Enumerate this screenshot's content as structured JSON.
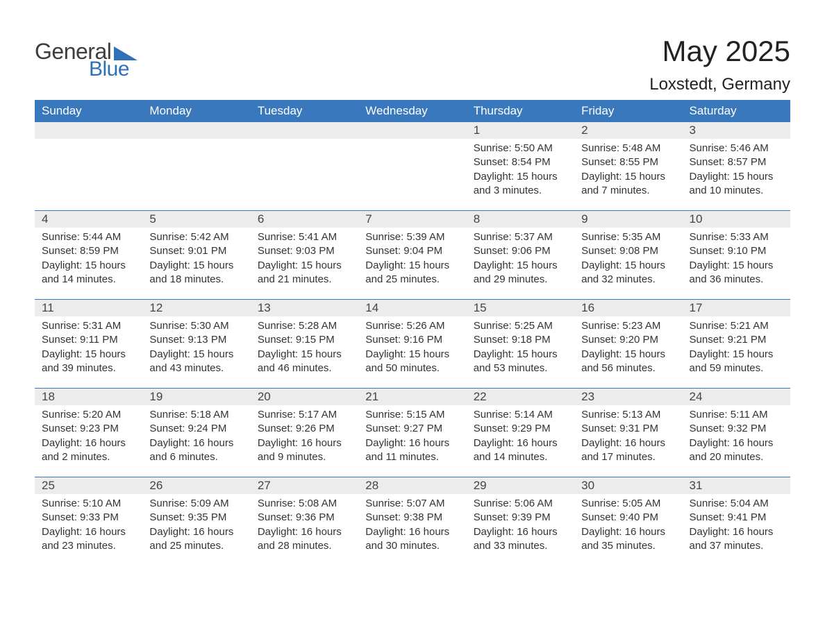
{
  "brand": {
    "general": "General",
    "blue": "Blue"
  },
  "title": "May 2025",
  "subtitle": "Loxstedt, Germany",
  "colors": {
    "header_bg": "#3a78bd",
    "header_fg": "#ffffff",
    "daynum_bg": "#ececec",
    "rule": "#3a78bd",
    "body_text": "#333333",
    "logo_blue": "#2f71b8",
    "logo_gray": "#3d3d3d",
    "page_bg": "#ffffff"
  },
  "typography": {
    "title_fontsize": 42,
    "subtitle_fontsize": 24,
    "header_fontsize": 17,
    "daynum_fontsize": 17,
    "detail_fontsize": 15
  },
  "calendar": {
    "type": "table",
    "columns": [
      "Sunday",
      "Monday",
      "Tuesday",
      "Wednesday",
      "Thursday",
      "Friday",
      "Saturday"
    ],
    "weeks": [
      [
        null,
        null,
        null,
        null,
        {
          "n": "1",
          "sunrise": "5:50 AM",
          "sunset": "8:54 PM",
          "day_h": 15,
          "day_m": 3
        },
        {
          "n": "2",
          "sunrise": "5:48 AM",
          "sunset": "8:55 PM",
          "day_h": 15,
          "day_m": 7
        },
        {
          "n": "3",
          "sunrise": "5:46 AM",
          "sunset": "8:57 PM",
          "day_h": 15,
          "day_m": 10
        }
      ],
      [
        {
          "n": "4",
          "sunrise": "5:44 AM",
          "sunset": "8:59 PM",
          "day_h": 15,
          "day_m": 14
        },
        {
          "n": "5",
          "sunrise": "5:42 AM",
          "sunset": "9:01 PM",
          "day_h": 15,
          "day_m": 18
        },
        {
          "n": "6",
          "sunrise": "5:41 AM",
          "sunset": "9:03 PM",
          "day_h": 15,
          "day_m": 21
        },
        {
          "n": "7",
          "sunrise": "5:39 AM",
          "sunset": "9:04 PM",
          "day_h": 15,
          "day_m": 25
        },
        {
          "n": "8",
          "sunrise": "5:37 AM",
          "sunset": "9:06 PM",
          "day_h": 15,
          "day_m": 29
        },
        {
          "n": "9",
          "sunrise": "5:35 AM",
          "sunset": "9:08 PM",
          "day_h": 15,
          "day_m": 32
        },
        {
          "n": "10",
          "sunrise": "5:33 AM",
          "sunset": "9:10 PM",
          "day_h": 15,
          "day_m": 36
        }
      ],
      [
        {
          "n": "11",
          "sunrise": "5:31 AM",
          "sunset": "9:11 PM",
          "day_h": 15,
          "day_m": 39
        },
        {
          "n": "12",
          "sunrise": "5:30 AM",
          "sunset": "9:13 PM",
          "day_h": 15,
          "day_m": 43
        },
        {
          "n": "13",
          "sunrise": "5:28 AM",
          "sunset": "9:15 PM",
          "day_h": 15,
          "day_m": 46
        },
        {
          "n": "14",
          "sunrise": "5:26 AM",
          "sunset": "9:16 PM",
          "day_h": 15,
          "day_m": 50
        },
        {
          "n": "15",
          "sunrise": "5:25 AM",
          "sunset": "9:18 PM",
          "day_h": 15,
          "day_m": 53
        },
        {
          "n": "16",
          "sunrise": "5:23 AM",
          "sunset": "9:20 PM",
          "day_h": 15,
          "day_m": 56
        },
        {
          "n": "17",
          "sunrise": "5:21 AM",
          "sunset": "9:21 PM",
          "day_h": 15,
          "day_m": 59
        }
      ],
      [
        {
          "n": "18",
          "sunrise": "5:20 AM",
          "sunset": "9:23 PM",
          "day_h": 16,
          "day_m": 2
        },
        {
          "n": "19",
          "sunrise": "5:18 AM",
          "sunset": "9:24 PM",
          "day_h": 16,
          "day_m": 6
        },
        {
          "n": "20",
          "sunrise": "5:17 AM",
          "sunset": "9:26 PM",
          "day_h": 16,
          "day_m": 9
        },
        {
          "n": "21",
          "sunrise": "5:15 AM",
          "sunset": "9:27 PM",
          "day_h": 16,
          "day_m": 11
        },
        {
          "n": "22",
          "sunrise": "5:14 AM",
          "sunset": "9:29 PM",
          "day_h": 16,
          "day_m": 14
        },
        {
          "n": "23",
          "sunrise": "5:13 AM",
          "sunset": "9:31 PM",
          "day_h": 16,
          "day_m": 17
        },
        {
          "n": "24",
          "sunrise": "5:11 AM",
          "sunset": "9:32 PM",
          "day_h": 16,
          "day_m": 20
        }
      ],
      [
        {
          "n": "25",
          "sunrise": "5:10 AM",
          "sunset": "9:33 PM",
          "day_h": 16,
          "day_m": 23
        },
        {
          "n": "26",
          "sunrise": "5:09 AM",
          "sunset": "9:35 PM",
          "day_h": 16,
          "day_m": 25
        },
        {
          "n": "27",
          "sunrise": "5:08 AM",
          "sunset": "9:36 PM",
          "day_h": 16,
          "day_m": 28
        },
        {
          "n": "28",
          "sunrise": "5:07 AM",
          "sunset": "9:38 PM",
          "day_h": 16,
          "day_m": 30
        },
        {
          "n": "29",
          "sunrise": "5:06 AM",
          "sunset": "9:39 PM",
          "day_h": 16,
          "day_m": 33
        },
        {
          "n": "30",
          "sunrise": "5:05 AM",
          "sunset": "9:40 PM",
          "day_h": 16,
          "day_m": 35
        },
        {
          "n": "31",
          "sunrise": "5:04 AM",
          "sunset": "9:41 PM",
          "day_h": 16,
          "day_m": 37
        }
      ]
    ]
  },
  "labels": {
    "sunrise": "Sunrise",
    "sunset": "Sunset",
    "daylight": "Daylight",
    "hours_word": "hours",
    "and_word": "and",
    "minutes_word": "minutes."
  }
}
